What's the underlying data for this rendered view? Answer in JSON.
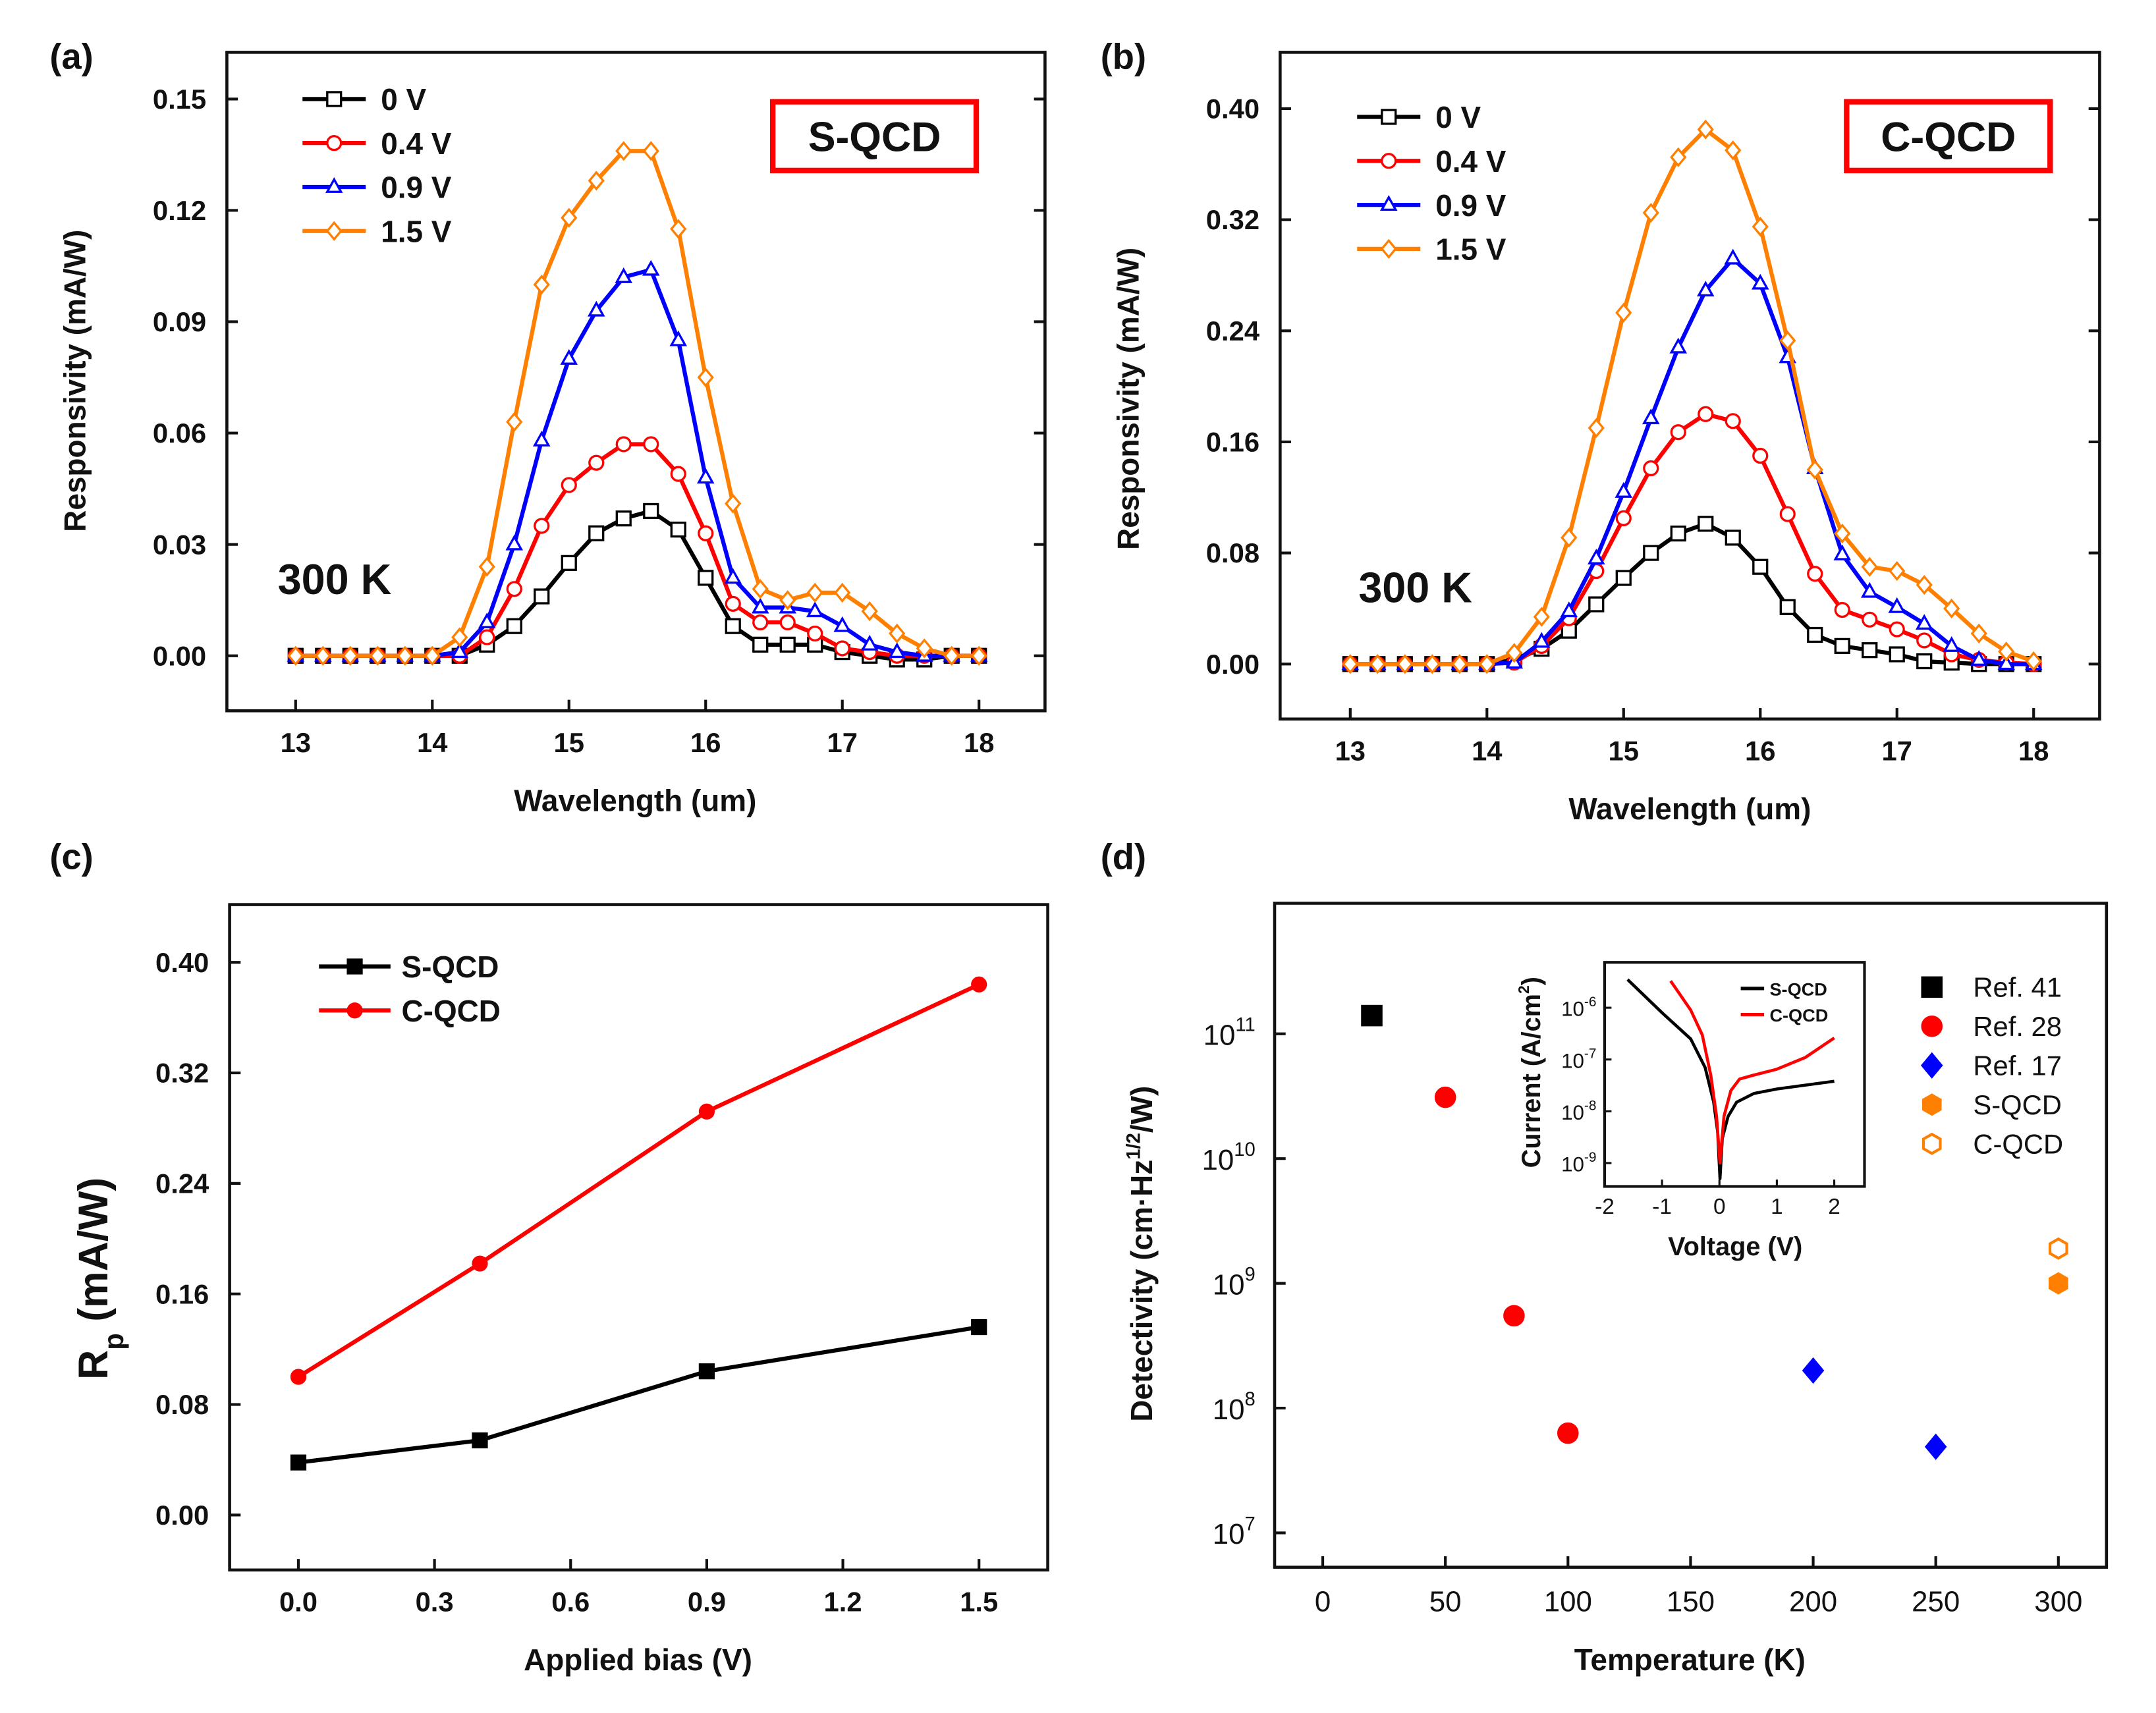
{
  "chart_data": [
    {
      "panel": "(a)",
      "type": "line",
      "xlabel": "Wavelength (um)",
      "ylabel": "Responsivity (mA/W)",
      "xlim": [
        12.5,
        18.5
      ],
      "ylim": [
        -0.015,
        0.165
      ],
      "xticks": [
        13,
        14,
        15,
        16,
        17,
        18
      ],
      "yticks": [
        "0.00",
        "0.03",
        "0.06",
        "0.09",
        "0.12",
        "0.15"
      ],
      "annotation": "300 K",
      "boxed_label": "S-QCD",
      "legend_position": "top-left",
      "x": [
        13,
        13.2,
        13.4,
        13.6,
        13.8,
        14,
        14.2,
        14.4,
        14.6,
        14.8,
        15,
        15.2,
        15.4,
        15.6,
        15.8,
        16,
        16.2,
        16.4,
        16.6,
        16.8,
        17,
        17.2,
        17.4,
        17.6,
        17.8,
        18
      ],
      "series": [
        {
          "name": "0 V",
          "color": "#000000",
          "marker": "square",
          "values": [
            0,
            0,
            0,
            0,
            0,
            0,
            0,
            0.003,
            0.008,
            0.016,
            0.025,
            0.033,
            0.037,
            0.039,
            0.034,
            0.021,
            0.008,
            0.003,
            0.003,
            0.003,
            0.001,
            0,
            -0.001,
            -0.001,
            0,
            0
          ]
        },
        {
          "name": "0.4 V",
          "color": "#ff0000",
          "marker": "circle",
          "values": [
            0,
            0,
            0,
            0,
            0,
            0,
            0,
            0.005,
            0.018,
            0.035,
            0.046,
            0.052,
            0.057,
            0.057,
            0.049,
            0.033,
            0.014,
            0.009,
            0.009,
            0.006,
            0.002,
            0.001,
            0,
            0,
            0,
            0
          ]
        },
        {
          "name": "0.9 V",
          "color": "#0000ff",
          "marker": "triangle",
          "values": [
            0,
            0,
            0,
            0,
            0,
            0,
            0.001,
            0.009,
            0.03,
            0.058,
            0.08,
            0.093,
            0.102,
            0.104,
            0.085,
            0.048,
            0.021,
            0.013,
            0.013,
            0.012,
            0.008,
            0.003,
            0.001,
            0,
            0,
            0
          ]
        },
        {
          "name": "1.5 V",
          "color": "#ff8000",
          "marker": "diamond",
          "values": [
            0,
            0,
            0,
            0,
            0,
            0,
            0.005,
            0.024,
            0.063,
            0.1,
            0.118,
            0.128,
            0.136,
            0.136,
            0.115,
            0.075,
            0.041,
            0.018,
            0.015,
            0.017,
            0.017,
            0.012,
            0.006,
            0.002,
            0,
            0
          ]
        }
      ]
    },
    {
      "panel": "(b)",
      "type": "line",
      "xlabel": "Wavelength (um)",
      "ylabel": "Responsivity (mA/W)",
      "xlim": [
        12.5,
        18.5
      ],
      "ylim": [
        -0.04,
        0.44
      ],
      "xticks": [
        13,
        14,
        15,
        16,
        17,
        18
      ],
      "yticks": [
        "0.00",
        "0.08",
        "0.16",
        "0.24",
        "0.32",
        "0.40"
      ],
      "annotation": "300 K",
      "boxed_label": "C-QCD",
      "legend_position": "top-left",
      "x": [
        13,
        13.2,
        13.4,
        13.6,
        13.8,
        14,
        14.2,
        14.4,
        14.6,
        14.8,
        15,
        15.2,
        15.4,
        15.6,
        15.8,
        16,
        16.2,
        16.4,
        16.6,
        16.8,
        17,
        17.2,
        17.4,
        17.6,
        17.8,
        18
      ],
      "series": [
        {
          "name": "0 V",
          "color": "#000000",
          "marker": "square",
          "values": [
            0,
            0,
            0,
            0,
            0,
            0,
            0.003,
            0.011,
            0.024,
            0.043,
            0.062,
            0.08,
            0.094,
            0.101,
            0.091,
            0.07,
            0.041,
            0.021,
            0.013,
            0.01,
            0.007,
            0.002,
            0.001,
            0,
            0,
            0
          ]
        },
        {
          "name": "0.4 V",
          "color": "#ff0000",
          "marker": "circle",
          "values": [
            0,
            0,
            0,
            0,
            0,
            0,
            0.001,
            0.013,
            0.033,
            0.067,
            0.105,
            0.141,
            0.167,
            0.18,
            0.175,
            0.15,
            0.108,
            0.065,
            0.039,
            0.032,
            0.025,
            0.017,
            0.007,
            0.003,
            0.001,
            0
          ]
        },
        {
          "name": "0.9 V",
          "color": "#0000ff",
          "marker": "triangle",
          "values": [
            0,
            0,
            0,
            0,
            0,
            0,
            0.001,
            0.016,
            0.038,
            0.076,
            0.124,
            0.177,
            0.228,
            0.269,
            0.292,
            0.274,
            0.221,
            0.141,
            0.079,
            0.052,
            0.041,
            0.029,
            0.013,
            0.003,
            0,
            0
          ]
        },
        {
          "name": "1.5 V",
          "color": "#ff8000",
          "marker": "diamond",
          "values": [
            0,
            0,
            0,
            0,
            0,
            0,
            0.008,
            0.034,
            0.091,
            0.17,
            0.253,
            0.325,
            0.365,
            0.385,
            0.37,
            0.315,
            0.233,
            0.14,
            0.094,
            0.07,
            0.067,
            0.057,
            0.04,
            0.022,
            0.009,
            0.002
          ]
        }
      ]
    },
    {
      "panel": "(c)",
      "type": "line",
      "xlabel": "Applied bias (V)",
      "ylabel_main": "R",
      "ylabel_sub": "p",
      "ylabel_rest": " (mA/W)",
      "xlim": [
        -0.15,
        1.65
      ],
      "ylim": [
        -0.02,
        0.44
      ],
      "xticks": [
        "0.0",
        "0.3",
        "0.6",
        "0.9",
        "1.2",
        "1.5"
      ],
      "yticks": [
        "0.00",
        "0.08",
        "0.16",
        "0.24",
        "0.32",
        "0.40"
      ],
      "legend_position": "top-left",
      "x": [
        0,
        0.4,
        0.9,
        1.5
      ],
      "series": [
        {
          "name": "S-QCD",
          "color": "#000000",
          "marker": "square-filled",
          "values": [
            0.038,
            0.054,
            0.104,
            0.136
          ]
        },
        {
          "name": "C-QCD",
          "color": "#ff0000",
          "marker": "circle-filled",
          "values": [
            0.1,
            0.182,
            0.292,
            0.384
          ]
        }
      ]
    },
    {
      "panel": "(d)",
      "type": "scatter",
      "xlabel": "Temperature (K)",
      "ylabel_pre": "Detectivity (cm·Hz",
      "ylabel_sup": "1/2",
      "ylabel_post": "/W)",
      "xlim": [
        -20,
        320
      ],
      "ylim": [
        5000000.0,
        1000000000000.0
      ],
      "yscale": "log",
      "xticks": [
        0,
        50,
        100,
        150,
        200,
        250,
        300
      ],
      "ytick_base": "10",
      "ytick_exponents": [
        "7",
        "8",
        "9",
        "10",
        "11"
      ],
      "legend_position": "right",
      "series": [
        {
          "name": "Ref. 41",
          "color": "#000000",
          "marker": "square-filled",
          "points": [
            [
              20,
              140000000000.0
            ]
          ]
        },
        {
          "name": "Ref. 28",
          "color": "#ff0000",
          "marker": "circle-filled",
          "points": [
            [
              50,
              31000000000.0
            ],
            [
              78,
              550000000.0
            ],
            [
              100,
              63000000.0
            ]
          ]
        },
        {
          "name": "Ref. 17",
          "color": "#0000ff",
          "marker": "diamond-filled",
          "points": [
            [
              200,
              200000000.0
            ],
            [
              250,
              49000000.0
            ]
          ]
        },
        {
          "name": "S-QCD",
          "color": "#ff8000",
          "marker": "hexagon-filled",
          "points": [
            [
              300,
              1000000000.0
            ]
          ]
        },
        {
          "name": "C-QCD",
          "color": "#ff8000",
          "marker": "hexagon-open",
          "points": [
            [
              300,
              1900000000.0
            ]
          ]
        }
      ],
      "inset": {
        "type": "line",
        "xlabel": "Voltage (V)",
        "ylabel_pre": "Current (A/cm",
        "ylabel_sup": "2",
        "ylabel_post": ")",
        "yscale": "log",
        "xlim": [
          -2,
          2.26
        ],
        "xticks": [
          "-2",
          "-1",
          "0",
          "1",
          "2"
        ],
        "ytick_base": "10",
        "ytick_exponents": [
          "-6",
          "-7",
          "-8",
          "-9"
        ],
        "series": [
          {
            "name": "S-QCD",
            "color": "#000000",
            "points": [
              [
                -1.6,
                3.5e-06
              ],
              [
                -1,
                8e-07
              ],
              [
                -0.5,
                2.5e-07
              ],
              [
                -0.25,
                7e-08
              ],
              [
                -0.1,
                1.5e-08
              ],
              [
                -0.03,
                4e-09
              ],
              [
                0.01,
                5e-10
              ],
              [
                0.05,
                3e-09
              ],
              [
                0.15,
                8e-09
              ],
              [
                0.3,
                1.5e-08
              ],
              [
                0.6,
                2.2e-08
              ],
              [
                1,
                2.7e-08
              ],
              [
                1.5,
                3.2e-08
              ],
              [
                2,
                3.8e-08
              ]
            ]
          },
          {
            "name": "C-QCD",
            "color": "#ff0000",
            "points": [
              [
                -0.85,
                3.3e-06
              ],
              [
                -0.5,
                9e-07
              ],
              [
                -0.3,
                3e-07
              ],
              [
                -0.15,
                5e-08
              ],
              [
                -0.05,
                8e-09
              ],
              [
                0.01,
                1e-09
              ],
              [
                0.08,
                8e-09
              ],
              [
                0.2,
                2.5e-08
              ],
              [
                0.35,
                4.2e-08
              ],
              [
                0.6,
                5e-08
              ],
              [
                1,
                6.5e-08
              ],
              [
                1.5,
                1.1e-07
              ],
              [
                2,
                2.6e-07
              ]
            ]
          }
        ]
      }
    }
  ]
}
